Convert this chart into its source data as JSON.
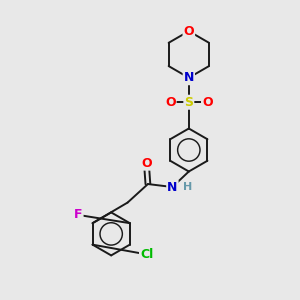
{
  "bg_color": "#e8e8e8",
  "bond_color": "#1a1a1a",
  "atom_colors": {
    "O": "#ff0000",
    "N": "#0000cc",
    "S": "#cccc00",
    "F": "#cc00cc",
    "Cl": "#00bb00",
    "H": "#6699aa",
    "C": "#1a1a1a"
  },
  "lw": 1.4,
  "figsize": [
    3.0,
    3.0
  ],
  "dpi": 100
}
